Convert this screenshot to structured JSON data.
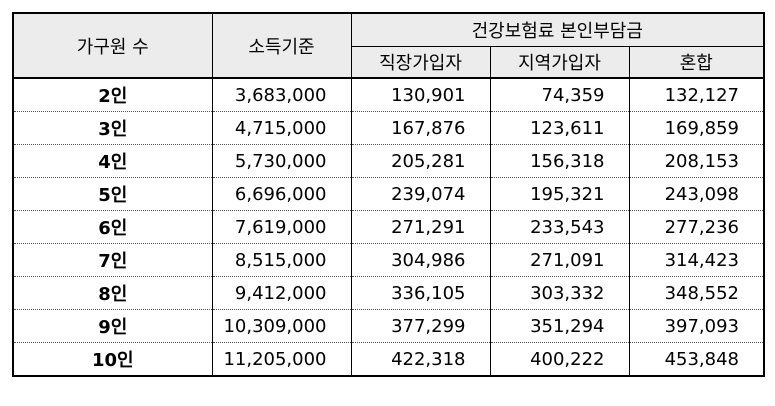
{
  "table": {
    "headers": {
      "household": "가구원 수",
      "income": "소득기준",
      "premium_group": "건강보험료 본인부담금",
      "employee": "직장가입자",
      "regional": "지역가입자",
      "mixed": "혼합"
    },
    "rows": [
      {
        "household": "2인",
        "income": "3,683,000",
        "employee": "130,901",
        "regional": "74,359",
        "mixed": "132,127"
      },
      {
        "household": "3인",
        "income": "4,715,000",
        "employee": "167,876",
        "regional": "123,611",
        "mixed": "169,859"
      },
      {
        "household": "4인",
        "income": "5,730,000",
        "employee": "205,281",
        "regional": "156,318",
        "mixed": "208,153"
      },
      {
        "household": "5인",
        "income": "6,696,000",
        "employee": "239,074",
        "regional": "195,321",
        "mixed": "243,098"
      },
      {
        "household": "6인",
        "income": "7,619,000",
        "employee": "271,291",
        "regional": "233,543",
        "mixed": "277,236"
      },
      {
        "household": "7인",
        "income": "8,515,000",
        "employee": "304,986",
        "regional": "271,091",
        "mixed": "314,423"
      },
      {
        "household": "8인",
        "income": "9,412,000",
        "employee": "336,105",
        "regional": "303,332",
        "mixed": "348,552"
      },
      {
        "household": "9인",
        "income": "10,309,000",
        "employee": "377,299",
        "regional": "351,294",
        "mixed": "397,093"
      },
      {
        "household": "10인",
        "income": "11,205,000",
        "employee": "422,318",
        "regional": "400,222",
        "mixed": "453,848"
      }
    ]
  }
}
